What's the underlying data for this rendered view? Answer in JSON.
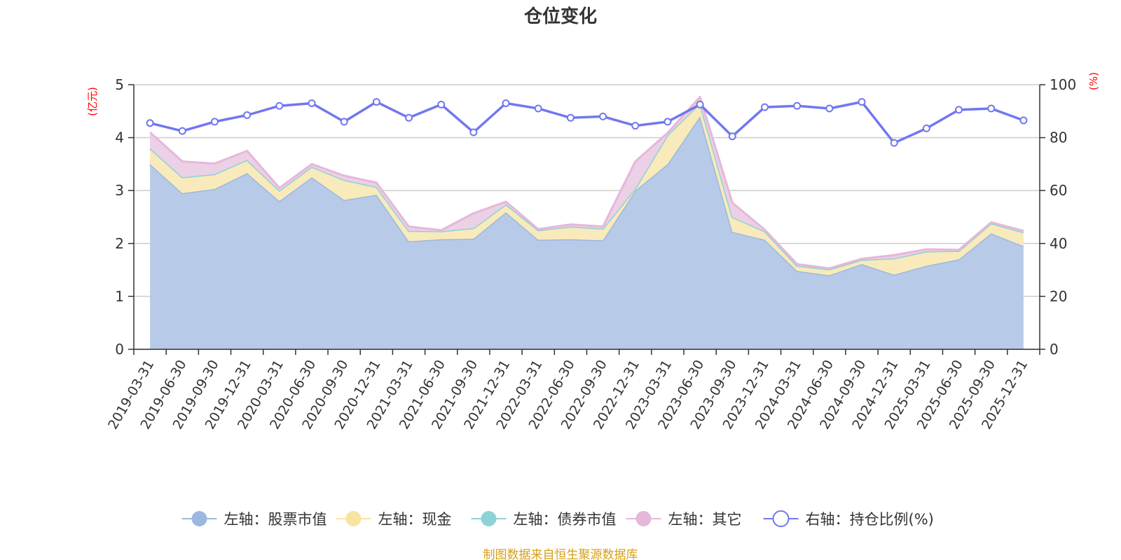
{
  "chart_data": {
    "type": "area",
    "title": "仓位变化",
    "left_axis_label": "(亿元)",
    "right_axis_label": "(%)",
    "left_ylim": [
      0,
      5
    ],
    "left_ticks": [
      0,
      1,
      2,
      3,
      4,
      5
    ],
    "right_ylim": [
      0,
      100
    ],
    "right_ticks": [
      0,
      20,
      40,
      60,
      80,
      100
    ],
    "categories": [
      "2019-03-31",
      "2019-06-30",
      "2019-09-30",
      "2019-12-31",
      "2020-03-31",
      "2020-06-30",
      "2020-09-30",
      "2020-12-31",
      "2021-03-31",
      "2021-06-30",
      "2021-09-30",
      "2021-12-31",
      "2022-03-31",
      "2022-06-30",
      "2022-09-30",
      "2022-12-31",
      "2023-03-31",
      "2023-06-30",
      "2023-09-30",
      "2023-12-31",
      "2024-03-31",
      "2024-06-30",
      "2024-09-30",
      "2024-12-31",
      "2025-03-31",
      "2025-06-30",
      "2025-09-30",
      "2025-12-31"
    ],
    "series": [
      {
        "name": "左轴：股票市值",
        "axis": "left",
        "color": "#9bb8e0",
        "fill": "#b7cbe8",
        "values": [
          3.5,
          2.95,
          3.03,
          3.33,
          2.8,
          3.25,
          2.82,
          2.92,
          2.04,
          2.08,
          2.09,
          2.59,
          2.07,
          2.08,
          2.06,
          3.0,
          3.5,
          4.4,
          2.22,
          2.07,
          1.48,
          1.4,
          1.61,
          1.41,
          1.58,
          1.7,
          2.19,
          1.95
        ]
      },
      {
        "name": "左轴：现金",
        "axis": "left",
        "color": "#f7e4a3",
        "fill": "#f8eabb",
        "values": [
          0.3,
          0.3,
          0.28,
          0.25,
          0.2,
          0.2,
          0.38,
          0.15,
          0.2,
          0.15,
          0.2,
          0.15,
          0.18,
          0.24,
          0.22,
          0.04,
          0.55,
          0.25,
          0.28,
          0.16,
          0.1,
          0.11,
          0.08,
          0.31,
          0.27,
          0.16,
          0.19,
          0.26
        ]
      },
      {
        "name": "左轴：债券市值",
        "axis": "left",
        "color": "#8dd3d5",
        "fill": "#b0e0e2",
        "values": [
          0,
          0,
          0,
          0,
          0,
          0,
          0,
          0,
          0,
          0,
          0,
          0,
          0,
          0,
          0,
          0,
          0,
          0,
          0,
          0,
          0,
          0,
          0,
          0,
          0,
          0,
          0,
          0
        ]
      },
      {
        "name": "左轴：其它",
        "axis": "left",
        "color": "#e6b7da",
        "fill": "#ecd0e6",
        "values": [
          0.3,
          0.3,
          0.2,
          0.17,
          0.05,
          0.05,
          0.08,
          0.08,
          0.08,
          0.02,
          0.28,
          0.05,
          0.02,
          0.04,
          0.04,
          0.51,
          0.04,
          0.12,
          0.27,
          0.03,
          0.03,
          0.02,
          0.02,
          0.06,
          0.04,
          0.02,
          0.02,
          0.03
        ]
      },
      {
        "name": "右轴：持仓比例(%)",
        "axis": "right",
        "color": "#7177f0",
        "values": [
          85.5,
          82.5,
          86,
          88.5,
          92,
          93,
          86,
          93.5,
          87.5,
          92.5,
          82,
          93,
          91,
          87.5,
          88,
          84.5,
          86,
          92.5,
          80.5,
          91.5,
          92,
          91,
          93.5,
          78,
          83.5,
          90.5,
          91,
          86.5
        ]
      }
    ]
  },
  "legend": [
    "左轴：股票市值",
    "左轴：现金",
    "左轴：债券市值",
    "左轴：其它",
    "右轴：持仓比例(%)"
  ],
  "source_text": "制图数据来自恒生聚源数据库"
}
